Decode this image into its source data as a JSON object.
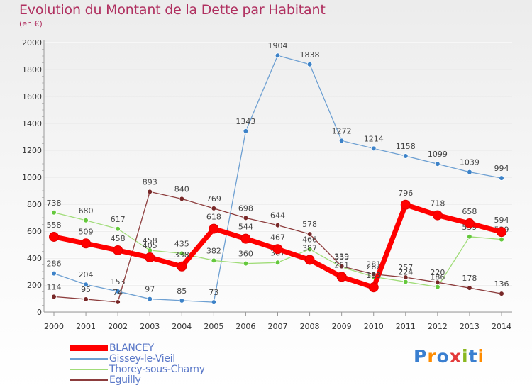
{
  "chart_data": {
    "type": "line",
    "title": "Evolution du Montant de la Dette par Habitant",
    "subtitle": "(en €)",
    "xlabel": "",
    "ylabel": "",
    "ylim": [
      0,
      2000
    ],
    "yticks": [
      0,
      200,
      400,
      600,
      800,
      1000,
      1200,
      1400,
      1600,
      1800,
      2000
    ],
    "grid": true,
    "legend_position": "bottom-left",
    "categories": [
      "2000",
      "2001",
      "2002",
      "2003",
      "2004",
      "2005",
      "2006",
      "2007",
      "2008",
      "2009",
      "2010",
      "2011",
      "2012",
      "2013",
      "2014"
    ],
    "series": [
      {
        "name": "BLANCEY",
        "color": "#ff0000",
        "marker_color": "#ff0000",
        "values": [
          558,
          509,
          458,
          405,
          338,
          618,
          544,
          467,
          387,
          261,
          183,
          796,
          718,
          658,
          594
        ],
        "labels": [
          "558",
          "509",
          "458",
          "405",
          "338",
          "618",
          "544",
          "467",
          "387",
          "261",
          "183",
          "796",
          "718",
          "658",
          "594"
        ]
      },
      {
        "name": "Gissey-le-Vieil",
        "color": "#6ea0d2",
        "marker_color": "#3c82c8",
        "values": [
          286,
          204,
          153,
          97,
          85,
          73,
          1343,
          1904,
          1838,
          1272,
          1214,
          1158,
          1099,
          1039,
          994
        ],
        "labels": [
          "286",
          "204",
          "153",
          "97",
          "85",
          "73",
          "1343",
          "1904",
          "1838",
          "1272",
          "1214",
          "1158",
          "1099",
          "1039",
          "994"
        ]
      },
      {
        "name": "Thorey-sous-Charny",
        "color": "#a0dc78",
        "marker_color": "#64c83c",
        "values": [
          738,
          680,
          617,
          458,
          435,
          382,
          360,
          367,
          466,
          333,
          262,
          224,
          186,
          559,
          539
        ],
        "labels": [
          "738",
          "680",
          "617",
          "458",
          "435",
          "382",
          "360",
          "367",
          "466",
          "333",
          "262",
          "224",
          "186",
          "559",
          "539"
        ]
      },
      {
        "name": "Eguilly",
        "color": "#8c3c3c",
        "marker_color": "#782828",
        "values": [
          114,
          95,
          74,
          893,
          840,
          769,
          698,
          644,
          578,
          339,
          281,
          257,
          220,
          178,
          136
        ],
        "labels": [
          "114",
          "95",
          "74",
          "893",
          "840",
          "769",
          "698",
          "644",
          "578",
          "339",
          "281",
          "257",
          "220",
          "178",
          "136"
        ]
      }
    ]
  },
  "brand": {
    "text": "Proxiti"
  }
}
